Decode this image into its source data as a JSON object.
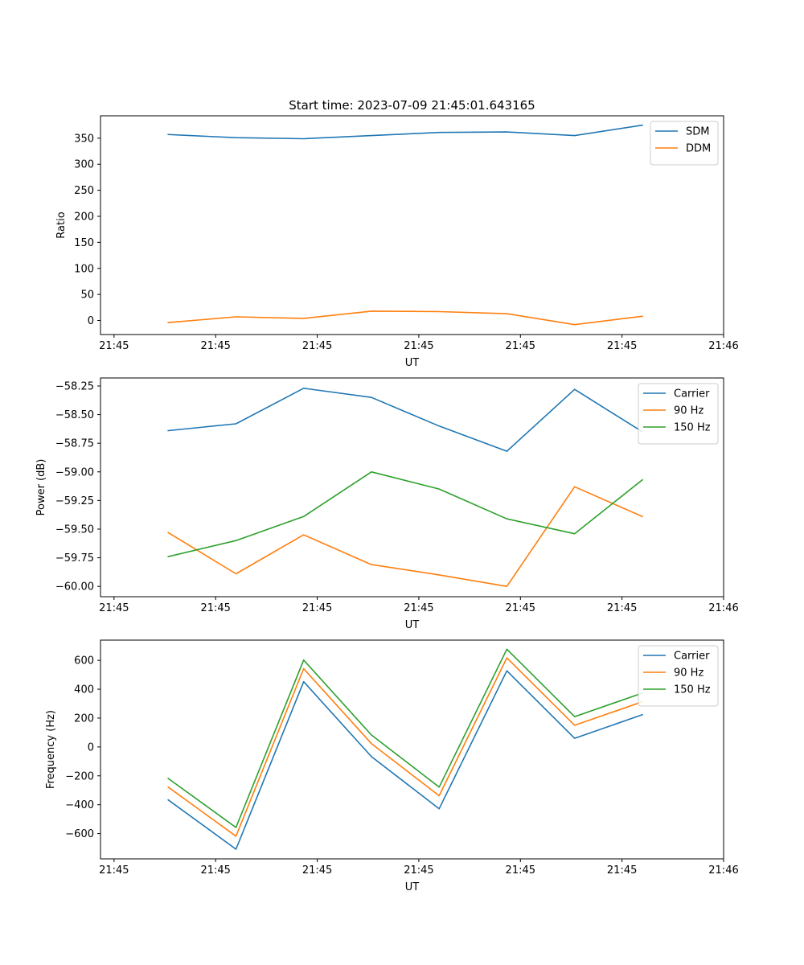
{
  "chart_data": [
    {
      "type": "line",
      "title": "Start time: 2023-07-09 21:45:01.643165",
      "xlabel": "UT",
      "ylabel": "Ratio",
      "x": [
        1,
        2,
        3,
        4,
        5,
        6,
        7,
        8
      ],
      "xlim": [
        0,
        9.2
      ],
      "xticks": [
        0.2,
        1.7,
        3.2,
        4.7,
        6.2,
        7.7,
        9.2
      ],
      "xtick_labels": [
        "21:45",
        "21:45",
        "21:45",
        "21:45",
        "21:45",
        "21:45",
        "21:46"
      ],
      "ylim": [
        -27,
        393
      ],
      "yticks": [
        0,
        50,
        100,
        150,
        200,
        250,
        300,
        350
      ],
      "ytick_labels": [
        "0",
        "50",
        "100",
        "150",
        "200",
        "250",
        "300",
        "350"
      ],
      "legend_position": "top-right",
      "series": [
        {
          "name": "SDM",
          "color": "#1f77b4",
          "values": [
            357,
            351,
            349,
            355,
            361,
            362,
            355,
            375
          ]
        },
        {
          "name": "DDM",
          "color": "#ff7f0e",
          "values": [
            -4,
            7,
            4,
            18,
            17,
            13,
            -8,
            8
          ]
        }
      ]
    },
    {
      "type": "line",
      "title": "",
      "xlabel": "UT",
      "ylabel": "Power (dB)",
      "x": [
        1,
        2,
        3,
        4,
        5,
        6,
        7,
        8
      ],
      "xlim": [
        0,
        9.2
      ],
      "xticks": [
        0.2,
        1.7,
        3.2,
        4.7,
        6.2,
        7.7,
        9.2
      ],
      "xtick_labels": [
        "21:45",
        "21:45",
        "21:45",
        "21:45",
        "21:45",
        "21:45",
        "21:46"
      ],
      "ylim": [
        -60.09,
        -58.18
      ],
      "yticks": [
        -60.0,
        -59.75,
        -59.5,
        -59.25,
        -59.0,
        -58.75,
        -58.5,
        -58.25
      ],
      "ytick_labels": [
        "−60.00",
        "−59.75",
        "−59.50",
        "−59.25",
        "−59.00",
        "−58.75",
        "−58.50",
        "−58.25"
      ],
      "legend_position": "top-right",
      "series": [
        {
          "name": "Carrier",
          "color": "#1f77b4",
          "values": [
            -58.64,
            -58.58,
            -58.27,
            -58.35,
            -58.6,
            -58.82,
            -58.28,
            -58.65
          ]
        },
        {
          "name": "90 Hz",
          "color": "#ff7f0e",
          "values": [
            -59.53,
            -59.89,
            -59.55,
            -59.81,
            -59.9,
            -60.0,
            -59.13,
            -59.39
          ]
        },
        {
          "name": "150 Hz",
          "color": "#2ca02c",
          "values": [
            -59.74,
            -59.6,
            -59.39,
            -59.0,
            -59.15,
            -59.41,
            -59.54,
            -59.07
          ]
        }
      ]
    },
    {
      "type": "line",
      "title": "",
      "xlabel": "UT",
      "ylabel": "Frequency (Hz)",
      "x": [
        1,
        2,
        3,
        4,
        5,
        6,
        7,
        8
      ],
      "xlim": [
        0,
        9.2
      ],
      "xticks": [
        0.2,
        1.7,
        3.2,
        4.7,
        6.2,
        7.7,
        9.2
      ],
      "xtick_labels": [
        "21:45",
        "21:45",
        "21:45",
        "21:45",
        "21:45",
        "21:45",
        "21:46"
      ],
      "ylim": [
        -775,
        740
      ],
      "yticks": [
        -600,
        -400,
        -200,
        0,
        200,
        400,
        600
      ],
      "ytick_labels": [
        "−600",
        "−400",
        "−200",
        "0",
        "200",
        "400",
        "600"
      ],
      "legend_position": "top-right",
      "series": [
        {
          "name": "Carrier",
          "color": "#1f77b4",
          "values": [
            -367,
            -708,
            452,
            -67,
            -428,
            527,
            60,
            223
          ]
        },
        {
          "name": "90 Hz",
          "color": "#ff7f0e",
          "values": [
            -278,
            -618,
            542,
            23,
            -338,
            617,
            150,
            313
          ]
        },
        {
          "name": "150 Hz",
          "color": "#2ca02c",
          "values": [
            -218,
            -558,
            602,
            83,
            -278,
            677,
            210,
            373
          ]
        }
      ]
    }
  ]
}
